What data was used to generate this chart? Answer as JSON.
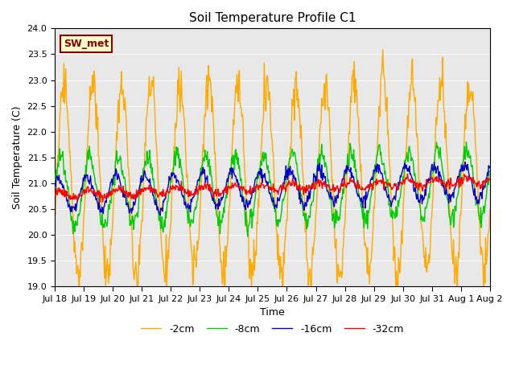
{
  "title": "Soil Temperature Profile C1",
  "xlabel": "Time",
  "ylabel": "Soil Temperature (C)",
  "ylim": [
    19.0,
    24.0
  ],
  "yticks": [
    19.0,
    19.5,
    20.0,
    20.5,
    21.0,
    21.5,
    22.0,
    22.5,
    23.0,
    23.5,
    24.0
  ],
  "xtick_labels": [
    "Jul 18",
    "Jul 19",
    "Jul 20",
    "Jul 21",
    "Jul 22",
    "Jul 23",
    "Jul 24",
    "Jul 25",
    "Jul 26",
    "Jul 27",
    "Jul 28",
    "Jul 29",
    "Jul 30",
    "Jul 31",
    "Aug 1",
    "Aug 2"
  ],
  "legend_labels": [
    "-32cm",
    "-16cm",
    "-8cm",
    "-2cm"
  ],
  "legend_colors": [
    "#ff0000",
    "#0000cc",
    "#00cc00",
    "#ffaa00"
  ],
  "background_color": "#e8e8e8",
  "annotation_text": "SW_met",
  "annotation_color": "#8b0000",
  "annotation_bg": "#ffffcc"
}
